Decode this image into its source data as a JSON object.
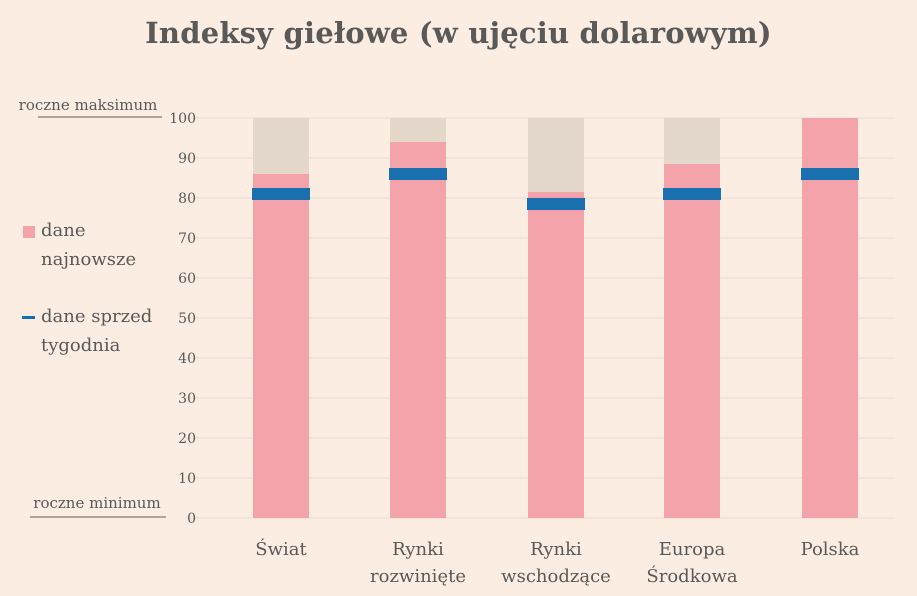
{
  "title": "Indeksy giełowe (w ujęciu dolarowym)",
  "legend": {
    "latest_label": "dane najnowsze",
    "previous_label": "dane sprzed tygodnia"
  },
  "colors": {
    "background": "#fbede2",
    "latest": "#f5a3ab",
    "range_max": "#e4d8cc",
    "previous": "#1a6fae",
    "grid": "#e8dcd3",
    "text": "#595959"
  },
  "chart_data": {
    "type": "bar",
    "title": "Indeksy giełowe (w ujęciu dolarowym)",
    "categories": [
      "Świat",
      "Rynki rozwinięte",
      "Rynki wschodzące",
      "Europa Środkowa",
      "Polska"
    ],
    "category_lines": [
      [
        "Świat"
      ],
      [
        "Rynki",
        "rozwinięte"
      ],
      [
        "Rynki",
        "wschodzące"
      ],
      [
        "Europa",
        "Środkowa"
      ],
      [
        "Polska"
      ]
    ],
    "series": [
      {
        "name": "dane najnowsze",
        "values": [
          86,
          94,
          81.5,
          88.5,
          100
        ]
      },
      {
        "name": "dane sprzed tygodnia",
        "values": [
          81,
          86,
          78.5,
          81,
          86
        ]
      }
    ],
    "range_max": 100,
    "ylim": [
      0,
      100
    ],
    "yticks": [
      0,
      10,
      20,
      30,
      40,
      50,
      60,
      70,
      80,
      90,
      100
    ],
    "y_top_annotation": "roczne maksimum",
    "y_bottom_annotation": "roczne minimum",
    "grid": true,
    "legend_position": "left"
  }
}
